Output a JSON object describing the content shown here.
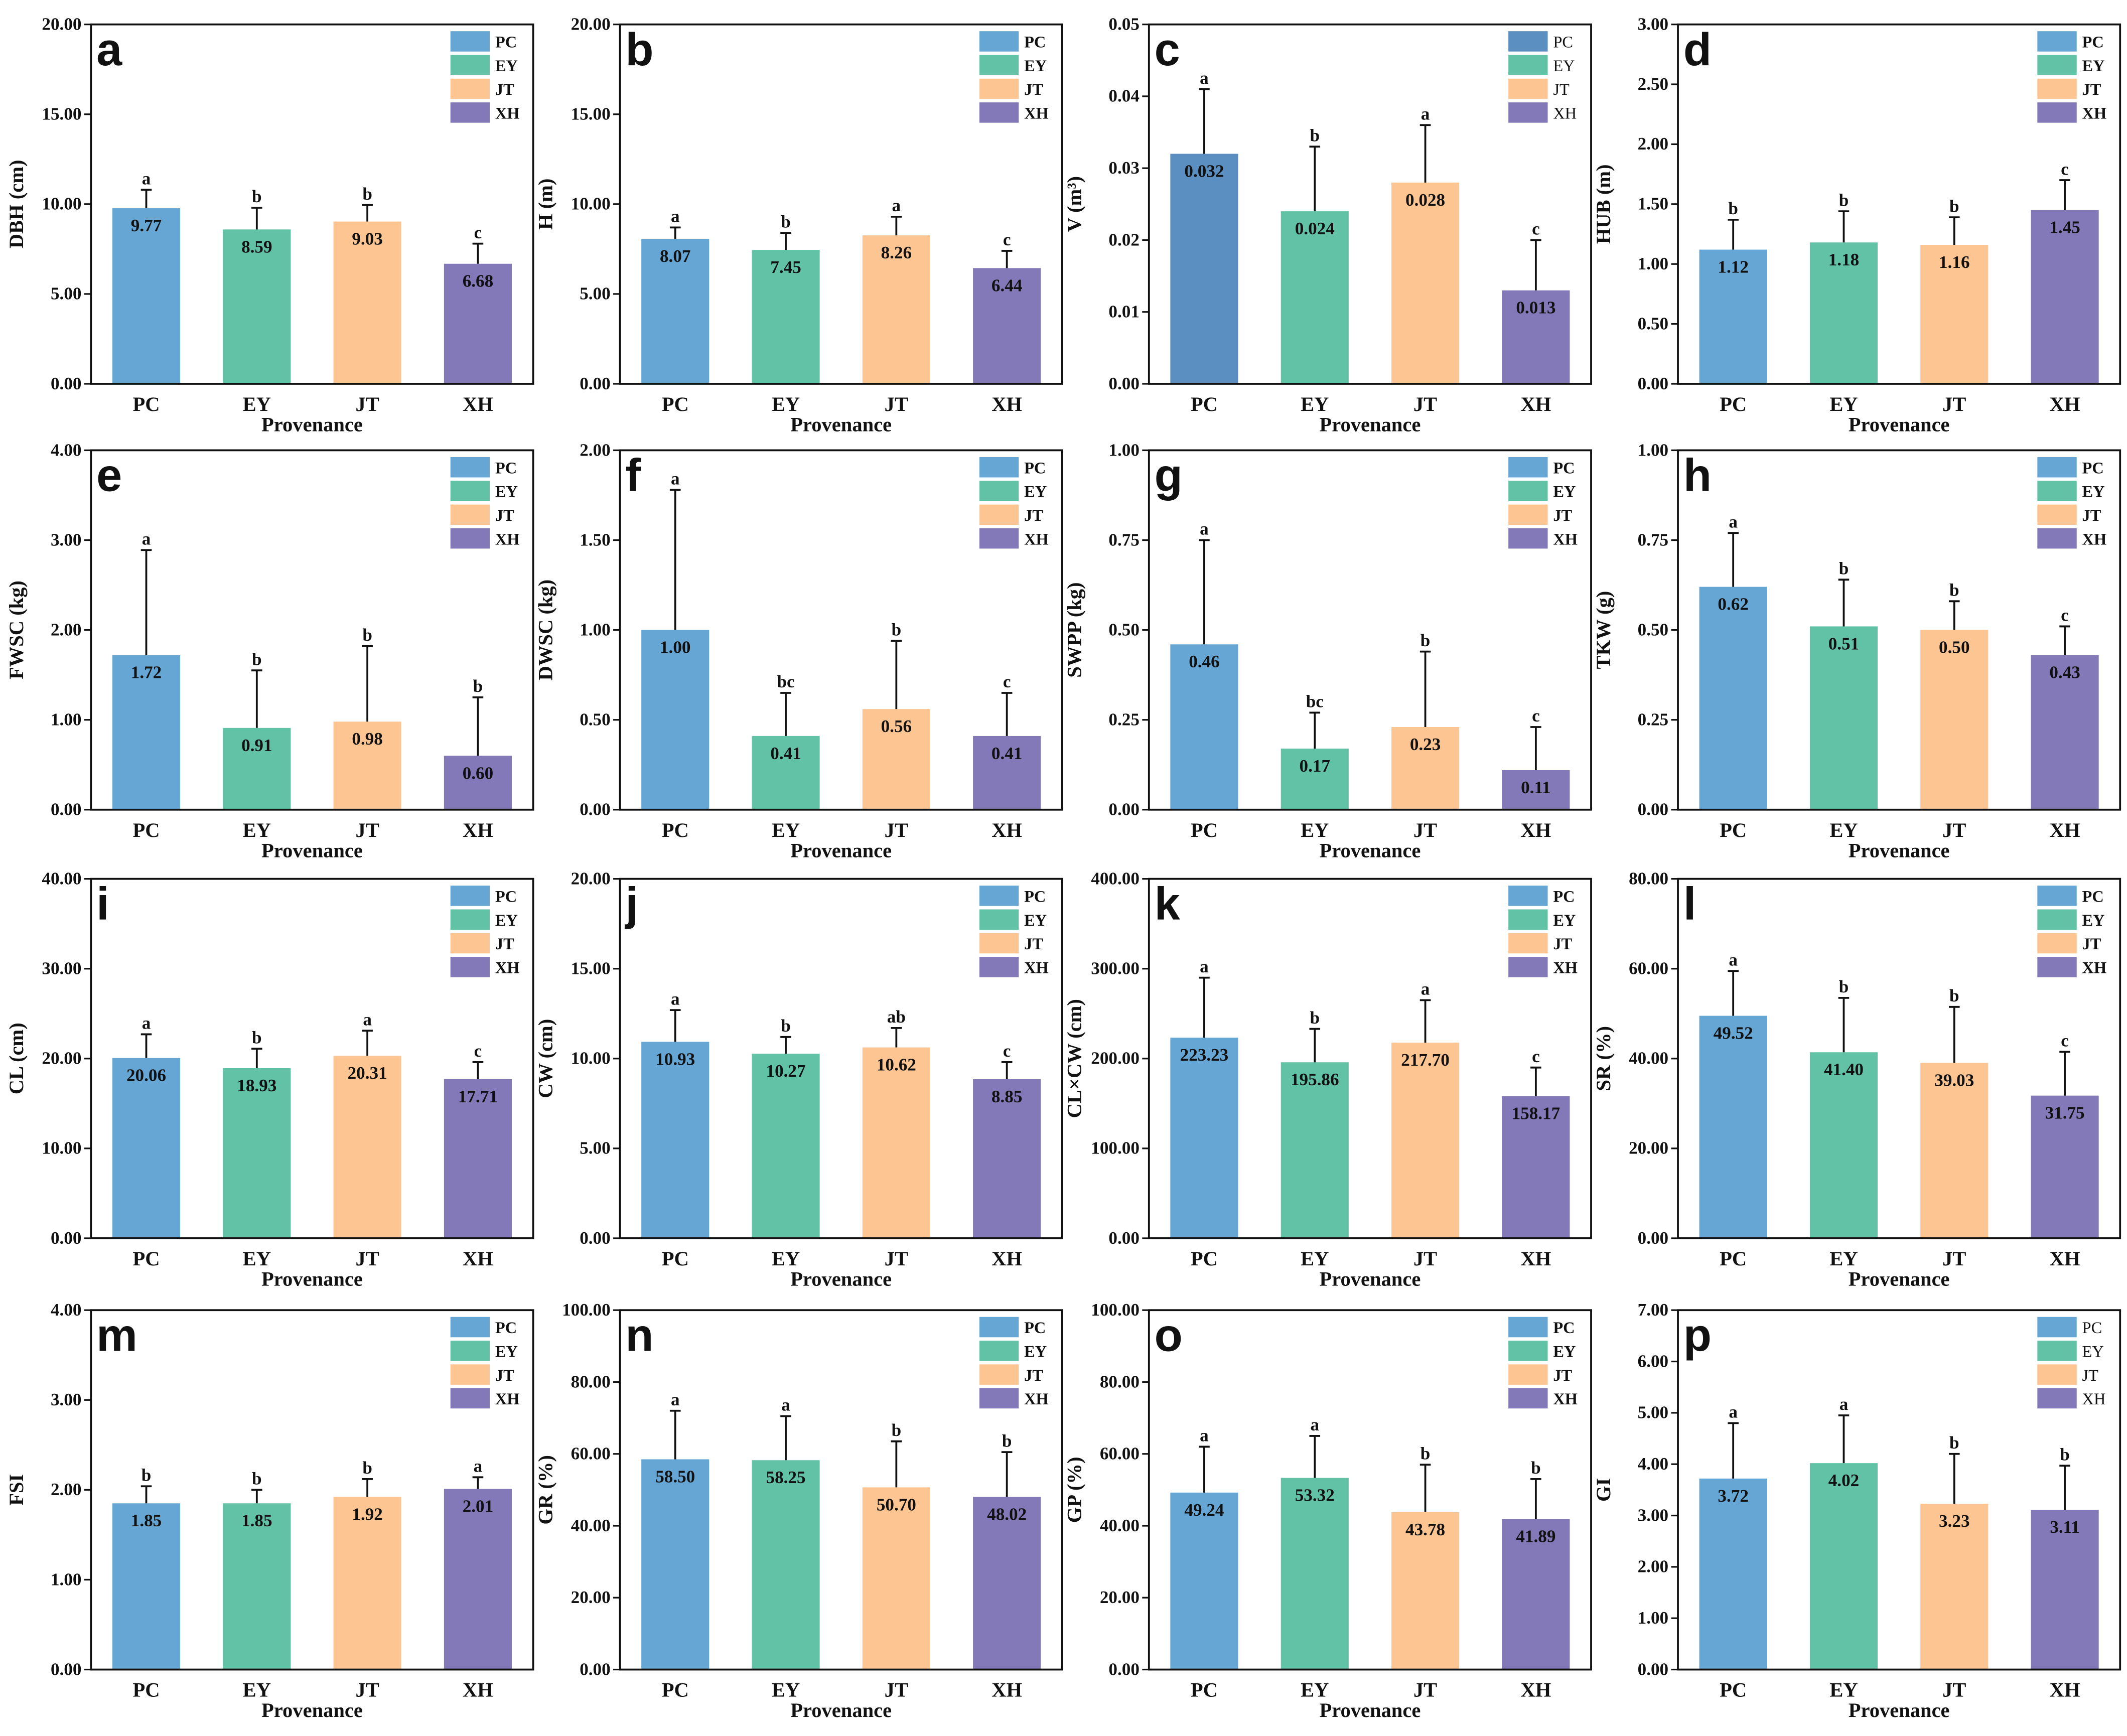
{
  "chart_data": [
    {
      "type": "bar",
      "panel": "a",
      "ylabel": "DBH (cm)",
      "xlabel": "Provenance",
      "ylim": [
        0,
        20
      ],
      "yticks": [
        "0.00",
        "5.00",
        "10.00",
        "15.00",
        "20.00"
      ],
      "categories": [
        "PC",
        "EY",
        "JT",
        "XH"
      ],
      "values": [
        9.77,
        8.59,
        9.03,
        6.68
      ],
      "value_labels": [
        "9.77",
        "8.59",
        "9.03",
        "6.68"
      ],
      "error_top": [
        10.8,
        9.8,
        9.95,
        7.8
      ],
      "letters": [
        "a",
        "b",
        "b",
        "c"
      ],
      "legend": [
        "PC",
        "EY",
        "JT",
        "XH"
      ],
      "legend_position": "top-right"
    },
    {
      "type": "bar",
      "panel": "b",
      "ylabel": "H (m)",
      "xlabel": "Provenance",
      "ylim": [
        0,
        20
      ],
      "yticks": [
        "0.00",
        "5.00",
        "10.00",
        "15.00",
        "20.00"
      ],
      "categories": [
        "PC",
        "EY",
        "JT",
        "XH"
      ],
      "values": [
        8.07,
        7.45,
        8.26,
        6.44
      ],
      "value_labels": [
        "8.07",
        "7.45",
        "8.26",
        "6.44"
      ],
      "error_top": [
        8.7,
        8.4,
        9.3,
        7.4
      ],
      "letters": [
        "a",
        "b",
        "a",
        "c"
      ],
      "legend": [
        "PC",
        "EY",
        "JT",
        "XH"
      ],
      "legend_position": "top-right"
    },
    {
      "type": "bar",
      "panel": "c",
      "ylabel": "V (m³)",
      "xlabel": "Provenance",
      "ylim": [
        0,
        0.05
      ],
      "yticks": [
        "0.00",
        "0.01",
        "0.02",
        "0.03",
        "0.04",
        "0.05"
      ],
      "categories": [
        "PC",
        "EY",
        "JT",
        "XH"
      ],
      "values": [
        0.032,
        0.024,
        0.028,
        0.013
      ],
      "value_labels": [
        "0.032",
        "0.024",
        "0.028",
        "0.013"
      ],
      "error_top": [
        0.041,
        0.033,
        0.036,
        0.02
      ],
      "letters": [
        "a",
        "b",
        "a",
        "c"
      ],
      "legend": [
        "PC",
        "EY",
        "JT",
        "XH"
      ],
      "legend_position": "top-right",
      "legend_thin": true,
      "pc_color": "#5b8fc2"
    },
    {
      "type": "bar",
      "panel": "d",
      "ylabel": "HUB (m)",
      "xlabel": "Provenance",
      "ylim": [
        0,
        3
      ],
      "yticks": [
        "0.00",
        "0.50",
        "1.00",
        "1.50",
        "2.00",
        "2.50",
        "3.00"
      ],
      "categories": [
        "PC",
        "EY",
        "JT",
        "XH"
      ],
      "values": [
        1.12,
        1.18,
        1.16,
        1.45
      ],
      "value_labels": [
        "1.12",
        "1.18",
        "1.16",
        "1.45"
      ],
      "error_top": [
        1.37,
        1.44,
        1.39,
        1.7
      ],
      "letters": [
        "b",
        "b",
        "b",
        "c"
      ],
      "legend": [
        "PC",
        "EY",
        "JT",
        "XH"
      ],
      "legend_position": "top-right"
    },
    {
      "type": "bar",
      "panel": "e",
      "ylabel": "FWSC (kg)",
      "xlabel": "Provenance",
      "ylim": [
        0,
        4
      ],
      "yticks": [
        "0.00",
        "1.00",
        "2.00",
        "3.00",
        "4.00"
      ],
      "categories": [
        "PC",
        "EY",
        "JT",
        "XH"
      ],
      "values": [
        1.72,
        0.91,
        0.98,
        0.6
      ],
      "value_labels": [
        "1.72",
        "0.91",
        "0.98",
        "0.60"
      ],
      "error_top": [
        2.89,
        1.55,
        1.82,
        1.25
      ],
      "letters": [
        "a",
        "b",
        "b",
        "b"
      ],
      "legend": [
        "PC",
        "EY",
        "JT",
        "XH"
      ],
      "legend_position": "top-right"
    },
    {
      "type": "bar",
      "panel": "f",
      "ylabel": "DWSC (kg)",
      "xlabel": "Provenance",
      "ylim": [
        0,
        2
      ],
      "yticks": [
        "0.00",
        "0.50",
        "1.00",
        "1.50",
        "2.00"
      ],
      "categories": [
        "PC",
        "EY",
        "JT",
        "XH"
      ],
      "values": [
        1.0,
        0.41,
        0.56,
        0.41
      ],
      "value_labels": [
        "1.00",
        "0.41",
        "0.56",
        "0.41"
      ],
      "error_top": [
        1.78,
        0.65,
        0.94,
        0.65
      ],
      "letters": [
        "a",
        "bc",
        "b",
        "c"
      ],
      "legend": [
        "PC",
        "EY",
        "JT",
        "XH"
      ],
      "legend_position": "top-right"
    },
    {
      "type": "bar",
      "panel": "g",
      "ylabel": "SWPP (kg)",
      "xlabel": "Provenance",
      "ylim": [
        0,
        1
      ],
      "yticks": [
        "0.00",
        "0.25",
        "0.50",
        "0.75",
        "1.00"
      ],
      "categories": [
        "PC",
        "EY",
        "JT",
        "XH"
      ],
      "values": [
        0.46,
        0.17,
        0.23,
        0.11
      ],
      "value_labels": [
        "0.46",
        "0.17",
        "0.23",
        "0.11"
      ],
      "error_top": [
        0.75,
        0.27,
        0.44,
        0.23
      ],
      "letters": [
        "a",
        "bc",
        "b",
        "c"
      ],
      "legend": [
        "PC",
        "EY",
        "JT",
        "XH"
      ],
      "legend_position": "top-right"
    },
    {
      "type": "bar",
      "panel": "h",
      "ylabel": "TKW (g)",
      "xlabel": "Provenance",
      "ylim": [
        0,
        1
      ],
      "yticks": [
        "0.00",
        "0.25",
        "0.50",
        "0.75",
        "1.00"
      ],
      "categories": [
        "PC",
        "EY",
        "JT",
        "XH"
      ],
      "values": [
        0.62,
        0.51,
        0.5,
        0.43
      ],
      "value_labels": [
        "0.62",
        "0.51",
        "0.50",
        "0.43"
      ],
      "error_top": [
        0.77,
        0.64,
        0.58,
        0.51
      ],
      "letters": [
        "a",
        "b",
        "b",
        "c"
      ],
      "legend": [
        "PC",
        "EY",
        "JT",
        "XH"
      ],
      "legend_position": "top-right"
    },
    {
      "type": "bar",
      "panel": "i",
      "ylabel": "CL (cm)",
      "xlabel": "Provenance",
      "ylim": [
        0,
        40
      ],
      "yticks": [
        "0.00",
        "10.00",
        "20.00",
        "30.00",
        "40.00"
      ],
      "categories": [
        "PC",
        "EY",
        "JT",
        "XH"
      ],
      "values": [
        20.06,
        18.93,
        20.31,
        17.71
      ],
      "value_labels": [
        "20.06",
        "18.93",
        "20.31",
        "17.71"
      ],
      "error_top": [
        22.7,
        21.1,
        23.1,
        19.6
      ],
      "letters": [
        "a",
        "b",
        "a",
        "c"
      ],
      "legend": [
        "PC",
        "EY",
        "JT",
        "XH"
      ],
      "legend_position": "top-right"
    },
    {
      "type": "bar",
      "panel": "j",
      "ylabel": "CW (cm)",
      "xlabel": "Provenance",
      "ylim": [
        0,
        20
      ],
      "yticks": [
        "0.00",
        "5.00",
        "10.00",
        "15.00",
        "20.00"
      ],
      "categories": [
        "PC",
        "EY",
        "JT",
        "XH"
      ],
      "values": [
        10.93,
        10.27,
        10.62,
        8.85
      ],
      "value_labels": [
        "10.93",
        "10.27",
        "10.62",
        "8.85"
      ],
      "error_top": [
        12.7,
        11.2,
        11.7,
        9.8
      ],
      "letters": [
        "a",
        "b",
        "ab",
        "c"
      ],
      "legend": [
        "PC",
        "EY",
        "JT",
        "XH"
      ],
      "legend_position": "top-right"
    },
    {
      "type": "bar",
      "panel": "k",
      "ylabel": "CL×CW (cm)",
      "xlabel": "Provenance",
      "ylim": [
        0,
        400
      ],
      "yticks": [
        "0.00",
        "100.00",
        "200.00",
        "300.00",
        "400.00"
      ],
      "categories": [
        "PC",
        "EY",
        "JT",
        "XH"
      ],
      "values": [
        223.23,
        195.86,
        217.7,
        158.17
      ],
      "value_labels": [
        "223.23",
        "195.86",
        "217.70",
        "158.17"
      ],
      "error_top": [
        290,
        233,
        265,
        190
      ],
      "letters": [
        "a",
        "b",
        "a",
        "c"
      ],
      "legend": [
        "PC",
        "EY",
        "JT",
        "XH"
      ],
      "legend_position": "top-right"
    },
    {
      "type": "bar",
      "panel": "l",
      "ylabel": "SR (%)",
      "xlabel": "Provenance",
      "ylim": [
        0,
        80
      ],
      "yticks": [
        "0.00",
        "20.00",
        "40.00",
        "60.00",
        "80.00"
      ],
      "categories": [
        "PC",
        "EY",
        "JT",
        "XH"
      ],
      "values": [
        49.52,
        41.4,
        39.03,
        31.75
      ],
      "value_labels": [
        "49.52",
        "41.40",
        "39.03",
        "31.75"
      ],
      "error_top": [
        59.5,
        53.5,
        51.5,
        41.5
      ],
      "letters": [
        "a",
        "b",
        "b",
        "c"
      ],
      "legend": [
        "PC",
        "EY",
        "JT",
        "XH"
      ],
      "legend_position": "top-right"
    },
    {
      "type": "bar",
      "panel": "m",
      "ylabel": "FSI",
      "xlabel": "Provenance",
      "ylim": [
        0,
        4
      ],
      "yticks": [
        "0.00",
        "1.00",
        "2.00",
        "3.00",
        "4.00"
      ],
      "categories": [
        "PC",
        "EY",
        "JT",
        "XH"
      ],
      "values": [
        1.85,
        1.85,
        1.92,
        2.01
      ],
      "value_labels": [
        "1.85",
        "1.85",
        "1.92",
        "2.01"
      ],
      "error_top": [
        2.04,
        2.0,
        2.12,
        2.14
      ],
      "letters": [
        "b",
        "b",
        "b",
        "a"
      ],
      "legend": [
        "PC",
        "EY",
        "JT",
        "XH"
      ],
      "legend_position": "top-right"
    },
    {
      "type": "bar",
      "panel": "n",
      "ylabel": "GR (%)",
      "xlabel": "Provenance",
      "ylim": [
        0,
        100
      ],
      "yticks": [
        "0.00",
        "20.00",
        "40.00",
        "60.00",
        "80.00",
        "100.00"
      ],
      "categories": [
        "PC",
        "EY",
        "JT",
        "XH"
      ],
      "values": [
        58.5,
        58.25,
        50.7,
        48.02
      ],
      "value_labels": [
        "58.50",
        "58.25",
        "50.70",
        "48.02"
      ],
      "error_top": [
        72,
        70.5,
        63.5,
        60.5
      ],
      "letters": [
        "a",
        "a",
        "b",
        "b"
      ],
      "legend": [
        "PC",
        "EY",
        "JT",
        "XH"
      ],
      "legend_position": "top-right"
    },
    {
      "type": "bar",
      "panel": "o",
      "ylabel": "GP (%)",
      "xlabel": "Provenance",
      "ylim": [
        0,
        100
      ],
      "yticks": [
        "0.00",
        "20.00",
        "40.00",
        "60.00",
        "80.00",
        "100.00"
      ],
      "categories": [
        "PC",
        "EY",
        "JT",
        "XH"
      ],
      "values": [
        49.24,
        53.32,
        43.78,
        41.89
      ],
      "value_labels": [
        "49.24",
        "53.32",
        "43.78",
        "41.89"
      ],
      "error_top": [
        62,
        65,
        57,
        53
      ],
      "letters": [
        "a",
        "a",
        "b",
        "b"
      ],
      "legend": [
        "PC",
        "EY",
        "JT",
        "XH"
      ],
      "legend_position": "top-right"
    },
    {
      "type": "bar",
      "panel": "p",
      "ylabel": "GI",
      "xlabel": "Provenance",
      "ylim": [
        0,
        7
      ],
      "yticks": [
        "0.00",
        "1.00",
        "2.00",
        "3.00",
        "4.00",
        "5.00",
        "6.00",
        "7.00"
      ],
      "categories": [
        "PC",
        "EY",
        "JT",
        "XH"
      ],
      "values": [
        3.72,
        4.02,
        3.23,
        3.11
      ],
      "value_labels": [
        "3.72",
        "4.02",
        "3.23",
        "3.11"
      ],
      "error_top": [
        4.8,
        4.95,
        4.2,
        3.97
      ],
      "letters": [
        "a",
        "a",
        "b",
        "b"
      ],
      "legend": [
        "PC",
        "EY",
        "JT",
        "XH"
      ],
      "legend_position": "top-right",
      "legend_thin": true
    }
  ],
  "colors": {
    "PC": "#66a6d4",
    "EY": "#62c2a5",
    "JT": "#fdc592",
    "XH": "#8479b8"
  }
}
